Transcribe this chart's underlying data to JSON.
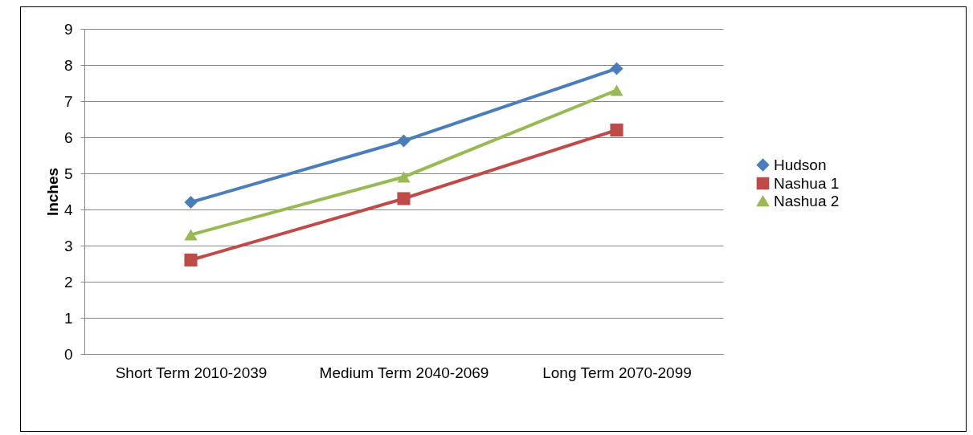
{
  "chart_data": {
    "type": "line",
    "ylabel": "Inches",
    "categories": [
      "Short Term 2010-2039",
      "Medium Term 2040-2069",
      "Long Term 2070-2099"
    ],
    "series": [
      {
        "name": "Hudson",
        "color": "#4a7ebb",
        "marker": "diamond",
        "values": [
          4.2,
          5.9,
          7.9
        ]
      },
      {
        "name": "Nashua 1",
        "color": "#be4b48",
        "marker": "square",
        "values": [
          2.6,
          4.3,
          6.2
        ]
      },
      {
        "name": "Nashua 2",
        "color": "#98b954",
        "marker": "triangle",
        "values": [
          3.3,
          4.9,
          7.3
        ]
      }
    ],
    "ylim": [
      0,
      9
    ],
    "yticks": [
      0,
      1,
      2,
      3,
      4,
      5,
      6,
      7,
      8,
      9
    ],
    "grid": "y",
    "legend": "right",
    "line_style": "solid"
  }
}
